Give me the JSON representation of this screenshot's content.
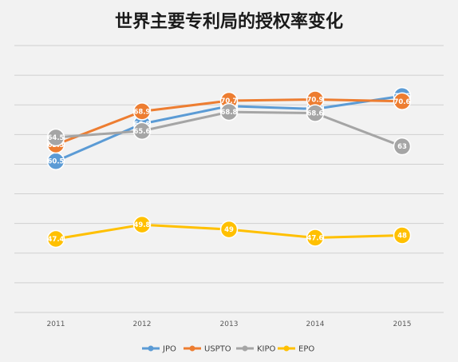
{
  "chart_data": {
    "type": "line",
    "title": "世界主要专利局的授权率变化",
    "xlabel": "",
    "ylabel": "",
    "categories": [
      "2011",
      "2012",
      "2013",
      "2014",
      "2015"
    ],
    "ylim": [
      35,
      80
    ],
    "grid": true,
    "legend_position": "bottom",
    "series": [
      {
        "name": "JPO",
        "color": "#5b9bd5",
        "values": [
          60.5,
          66.8,
          69.8,
          69.3,
          71.5
        ],
        "labels": [
          "60.5",
          "66.8",
          "69.8",
          "69.3",
          "71.5"
        ]
      },
      {
        "name": "USPTO",
        "color": "#ed7d31",
        "values": [
          63.3,
          68.9,
          70.7,
          70.9,
          70.6
        ],
        "labels": [
          "63.3",
          "68.9",
          "70.7",
          "70.9",
          "70.6"
        ]
      },
      {
        "name": "KIPO",
        "color": "#a5a5a5",
        "values": [
          64.5,
          65.6,
          68.8,
          68.6,
          63
        ],
        "labels": [
          "64.5",
          "65.6",
          "68.8",
          "68.6",
          "63"
        ]
      },
      {
        "name": "EPO",
        "color": "#ffc000",
        "values": [
          47.4,
          49.8,
          49,
          47.6,
          48
        ],
        "labels": [
          "47.4",
          "49.8",
          "49",
          "47.6",
          "48"
        ]
      }
    ]
  }
}
